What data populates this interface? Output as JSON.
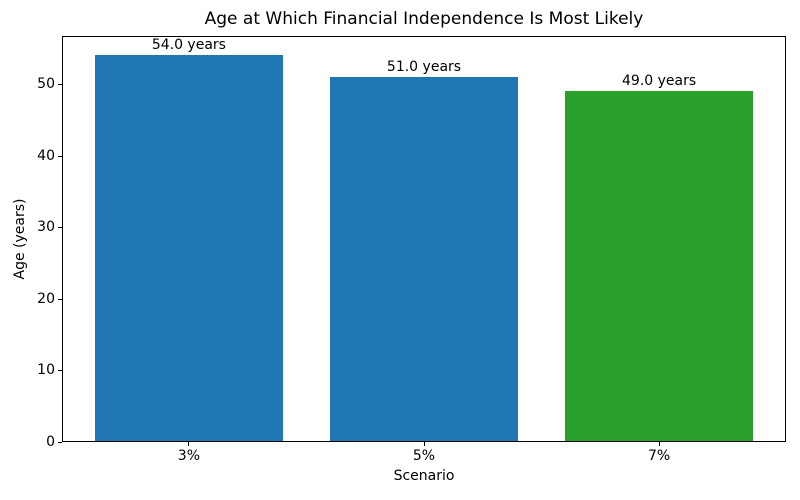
{
  "chart_data": {
    "type": "bar",
    "title": "Age at Which Financial Independence Is Most Likely",
    "xlabel": "Scenario",
    "ylabel": "Age (years)",
    "categories": [
      "3%",
      "5%",
      "7%"
    ],
    "values": [
      54.0,
      51.0,
      49.0
    ],
    "bar_labels": [
      "54.0 years",
      "51.0 years",
      "49.0 years"
    ],
    "bar_colors": [
      "#1f77b4",
      "#1f77b4",
      "#2ca02c"
    ],
    "yticks": [
      0,
      10,
      20,
      30,
      40,
      50
    ],
    "ylim": [
      0,
      56.7
    ],
    "xlim": [
      -0.54,
      2.54
    ],
    "bar_width": 0.8,
    "grid": false,
    "legend": null,
    "spine_color": "#000000",
    "background_color": "#ffffff"
  }
}
